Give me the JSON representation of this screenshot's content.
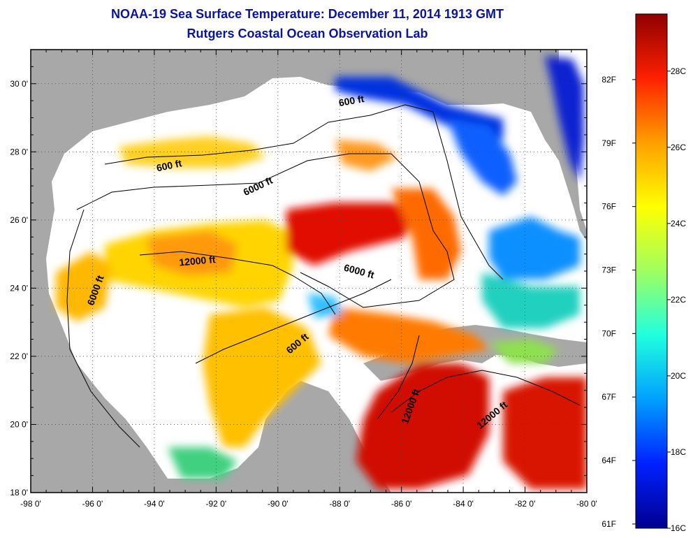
{
  "header": {
    "title": "NOAA-19 Sea Surface Temperature:  December 11, 2014 1913 GMT",
    "subtitle": "Rutgers Coastal Ocean Observation Lab"
  },
  "map": {
    "lon_range": [
      -98,
      -80
    ],
    "lat_range": [
      18,
      31
    ],
    "x_ticks": [
      {
        "lon": -98,
        "label": "-98 0'"
      },
      {
        "lon": -96,
        "label": "-96 0'"
      },
      {
        "lon": -94,
        "label": "-94 0'"
      },
      {
        "lon": -92,
        "label": "-92 0'"
      },
      {
        "lon": -90,
        "label": "-90 0'"
      },
      {
        "lon": -88,
        "label": "-88 0'"
      },
      {
        "lon": -86,
        "label": "-86 0'"
      },
      {
        "lon": -84,
        "label": "-84 0'"
      },
      {
        "lon": -82,
        "label": "-82 0'"
      },
      {
        "lon": -80,
        "label": "-80 0'"
      }
    ],
    "y_ticks": [
      {
        "lat": 18,
        "label": "18 0'"
      },
      {
        "lat": 20,
        "label": "20 0'"
      },
      {
        "lat": 22,
        "label": "22 0'"
      },
      {
        "lat": 24,
        "label": "24 0'"
      },
      {
        "lat": 26,
        "label": "26 0'"
      },
      {
        "lat": 28,
        "label": "28 0'"
      },
      {
        "lat": 30,
        "label": "30 0'"
      }
    ],
    "contour_labels": [
      {
        "text": "600 ft",
        "lon": -93.5,
        "lat": 27.5,
        "rot": -12
      },
      {
        "text": "6000 ft",
        "lon": -90.6,
        "lat": 26.9,
        "rot": -25
      },
      {
        "text": "600 ft",
        "lon": -87.6,
        "lat": 29.4,
        "rot": -10
      },
      {
        "text": "12000 ft",
        "lon": -92.6,
        "lat": 24.7,
        "rot": -5
      },
      {
        "text": "6000 ft",
        "lon": -95.8,
        "lat": 23.9,
        "rot": -70
      },
      {
        "text": "6000 ft",
        "lon": -87.4,
        "lat": 24.4,
        "rot": 15
      },
      {
        "text": "600 ft",
        "lon": -89.3,
        "lat": 22.3,
        "rot": -40
      },
      {
        "text": "12000 ft",
        "lon": -85.6,
        "lat": 20.5,
        "rot": -70
      },
      {
        "text": "12000 ft",
        "lon": -83.0,
        "lat": 20.2,
        "rot": -40
      }
    ]
  },
  "colorbar": {
    "colors": [
      "#00008f",
      "#0020ff",
      "#00a0ff",
      "#20ffdf",
      "#9fff60",
      "#ffff00",
      "#ff9f00",
      "#ff2000",
      "#8f0000"
    ],
    "min_c": 16,
    "max_c": 29.5,
    "c_ticks": [
      {
        "value": 16,
        "label": "16C"
      },
      {
        "value": 18,
        "label": "18C"
      },
      {
        "value": 20,
        "label": "20C"
      },
      {
        "value": 22,
        "label": "22C"
      },
      {
        "value": 24,
        "label": "24C"
      },
      {
        "value": 26,
        "label": "26C"
      },
      {
        "value": 28,
        "label": "28C"
      }
    ],
    "f_ticks": [
      {
        "value": 61,
        "label": "61F"
      },
      {
        "value": 64,
        "label": "64F"
      },
      {
        "value": 67,
        "label": "67F"
      },
      {
        "value": 70,
        "label": "70F"
      },
      {
        "value": 73,
        "label": "73F"
      },
      {
        "value": 76,
        "label": "76F"
      },
      {
        "value": 79,
        "label": "79F"
      },
      {
        "value": 82,
        "label": "82F"
      }
    ]
  }
}
